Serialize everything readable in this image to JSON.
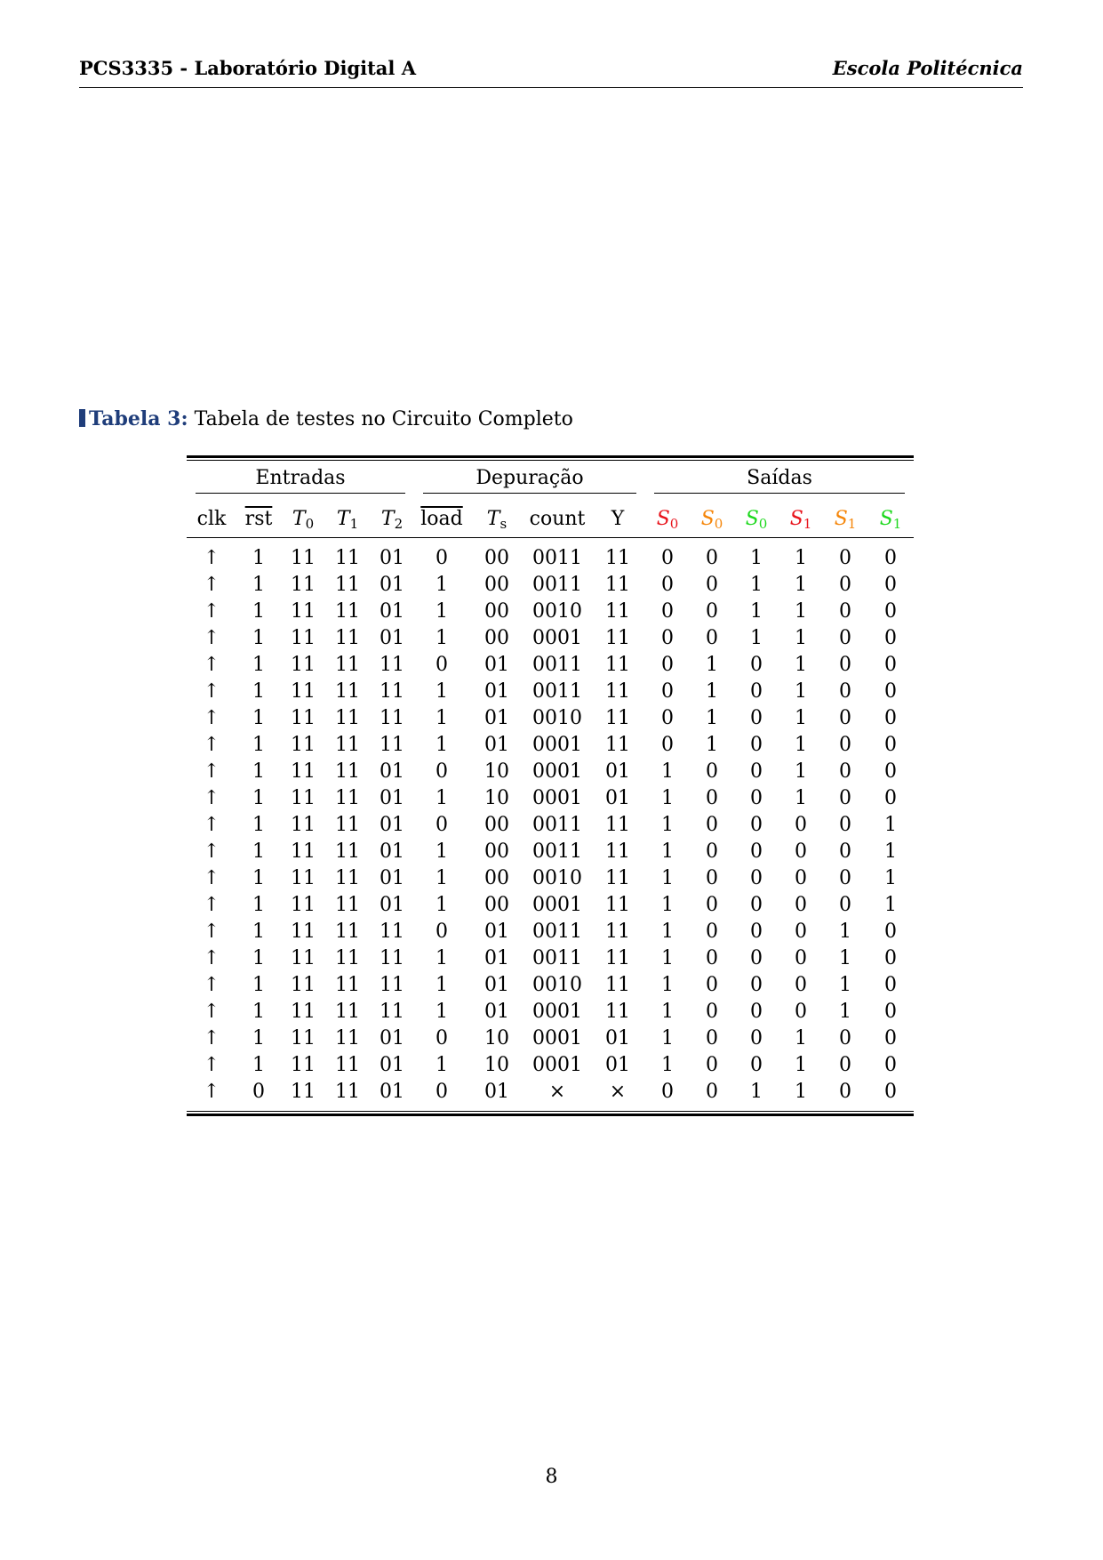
{
  "header": {
    "left": "PCS3335 - Laboratório Digital A",
    "right": "Escola Politécnica"
  },
  "caption": {
    "label": "Tabela 3:",
    "text": "Tabela de testes no Circuito Completo"
  },
  "table": {
    "groups": [
      "Entradas",
      "Depuração",
      "Saídas"
    ],
    "columns": [
      {
        "text": "clk"
      },
      {
        "text": "rst"
      },
      {
        "text": "T",
        "sub": "0"
      },
      {
        "text": "T",
        "sub": "1"
      },
      {
        "text": "T",
        "sub": "2"
      },
      {
        "text": "load"
      },
      {
        "text": "T",
        "sub": "s"
      },
      {
        "text": "count"
      },
      {
        "text": "Y"
      },
      {
        "text": "S",
        "sub": "0",
        "color": "#e8141c"
      },
      {
        "text": "S",
        "sub": "0",
        "color": "#f5860a"
      },
      {
        "text": "S",
        "sub": "0",
        "color": "#1ed81e"
      },
      {
        "text": "S",
        "sub": "1",
        "color": "#e8141c"
      },
      {
        "text": "S",
        "sub": "1",
        "color": "#f5860a"
      },
      {
        "text": "S",
        "sub": "1",
        "color": "#1ed81e"
      }
    ],
    "rows": [
      [
        "↑",
        "1",
        "11",
        "11",
        "01",
        "0",
        "00",
        "0011",
        "11",
        "0",
        "0",
        "1",
        "1",
        "0",
        "0"
      ],
      [
        "↑",
        "1",
        "11",
        "11",
        "01",
        "1",
        "00",
        "0011",
        "11",
        "0",
        "0",
        "1",
        "1",
        "0",
        "0"
      ],
      [
        "↑",
        "1",
        "11",
        "11",
        "01",
        "1",
        "00",
        "0010",
        "11",
        "0",
        "0",
        "1",
        "1",
        "0",
        "0"
      ],
      [
        "↑",
        "1",
        "11",
        "11",
        "01",
        "1",
        "00",
        "0001",
        "11",
        "0",
        "0",
        "1",
        "1",
        "0",
        "0"
      ],
      [
        "↑",
        "1",
        "11",
        "11",
        "11",
        "0",
        "01",
        "0011",
        "11",
        "0",
        "1",
        "0",
        "1",
        "0",
        "0"
      ],
      [
        "↑",
        "1",
        "11",
        "11",
        "11",
        "1",
        "01",
        "0011",
        "11",
        "0",
        "1",
        "0",
        "1",
        "0",
        "0"
      ],
      [
        "↑",
        "1",
        "11",
        "11",
        "11",
        "1",
        "01",
        "0010",
        "11",
        "0",
        "1",
        "0",
        "1",
        "0",
        "0"
      ],
      [
        "↑",
        "1",
        "11",
        "11",
        "11",
        "1",
        "01",
        "0001",
        "11",
        "0",
        "1",
        "0",
        "1",
        "0",
        "0"
      ],
      [
        "↑",
        "1",
        "11",
        "11",
        "01",
        "0",
        "10",
        "0001",
        "01",
        "1",
        "0",
        "0",
        "1",
        "0",
        "0"
      ],
      [
        "↑",
        "1",
        "11",
        "11",
        "01",
        "1",
        "10",
        "0001",
        "01",
        "1",
        "0",
        "0",
        "1",
        "0",
        "0"
      ],
      [
        "↑",
        "1",
        "11",
        "11",
        "01",
        "0",
        "00",
        "0011",
        "11",
        "1",
        "0",
        "0",
        "0",
        "0",
        "1"
      ],
      [
        "↑",
        "1",
        "11",
        "11",
        "01",
        "1",
        "00",
        "0011",
        "11",
        "1",
        "0",
        "0",
        "0",
        "0",
        "1"
      ],
      [
        "↑",
        "1",
        "11",
        "11",
        "01",
        "1",
        "00",
        "0010",
        "11",
        "1",
        "0",
        "0",
        "0",
        "0",
        "1"
      ],
      [
        "↑",
        "1",
        "11",
        "11",
        "01",
        "1",
        "00",
        "0001",
        "11",
        "1",
        "0",
        "0",
        "0",
        "0",
        "1"
      ],
      [
        "↑",
        "1",
        "11",
        "11",
        "11",
        "0",
        "01",
        "0011",
        "11",
        "1",
        "0",
        "0",
        "0",
        "1",
        "0"
      ],
      [
        "↑",
        "1",
        "11",
        "11",
        "11",
        "1",
        "01",
        "0011",
        "11",
        "1",
        "0",
        "0",
        "0",
        "1",
        "0"
      ],
      [
        "↑",
        "1",
        "11",
        "11",
        "11",
        "1",
        "01",
        "0010",
        "11",
        "1",
        "0",
        "0",
        "0",
        "1",
        "0"
      ],
      [
        "↑",
        "1",
        "11",
        "11",
        "11",
        "1",
        "01",
        "0001",
        "11",
        "1",
        "0",
        "0",
        "0",
        "1",
        "0"
      ],
      [
        "↑",
        "1",
        "11",
        "11",
        "01",
        "0",
        "10",
        "0001",
        "01",
        "1",
        "0",
        "0",
        "1",
        "0",
        "0"
      ],
      [
        "↑",
        "1",
        "11",
        "11",
        "01",
        "1",
        "10",
        "0001",
        "01",
        "1",
        "0",
        "0",
        "1",
        "0",
        "0"
      ],
      [
        "↑",
        "0",
        "11",
        "11",
        "01",
        "0",
        "01",
        "×",
        "×",
        "0",
        "0",
        "1",
        "1",
        "0",
        "0"
      ]
    ]
  },
  "page_number": "8"
}
